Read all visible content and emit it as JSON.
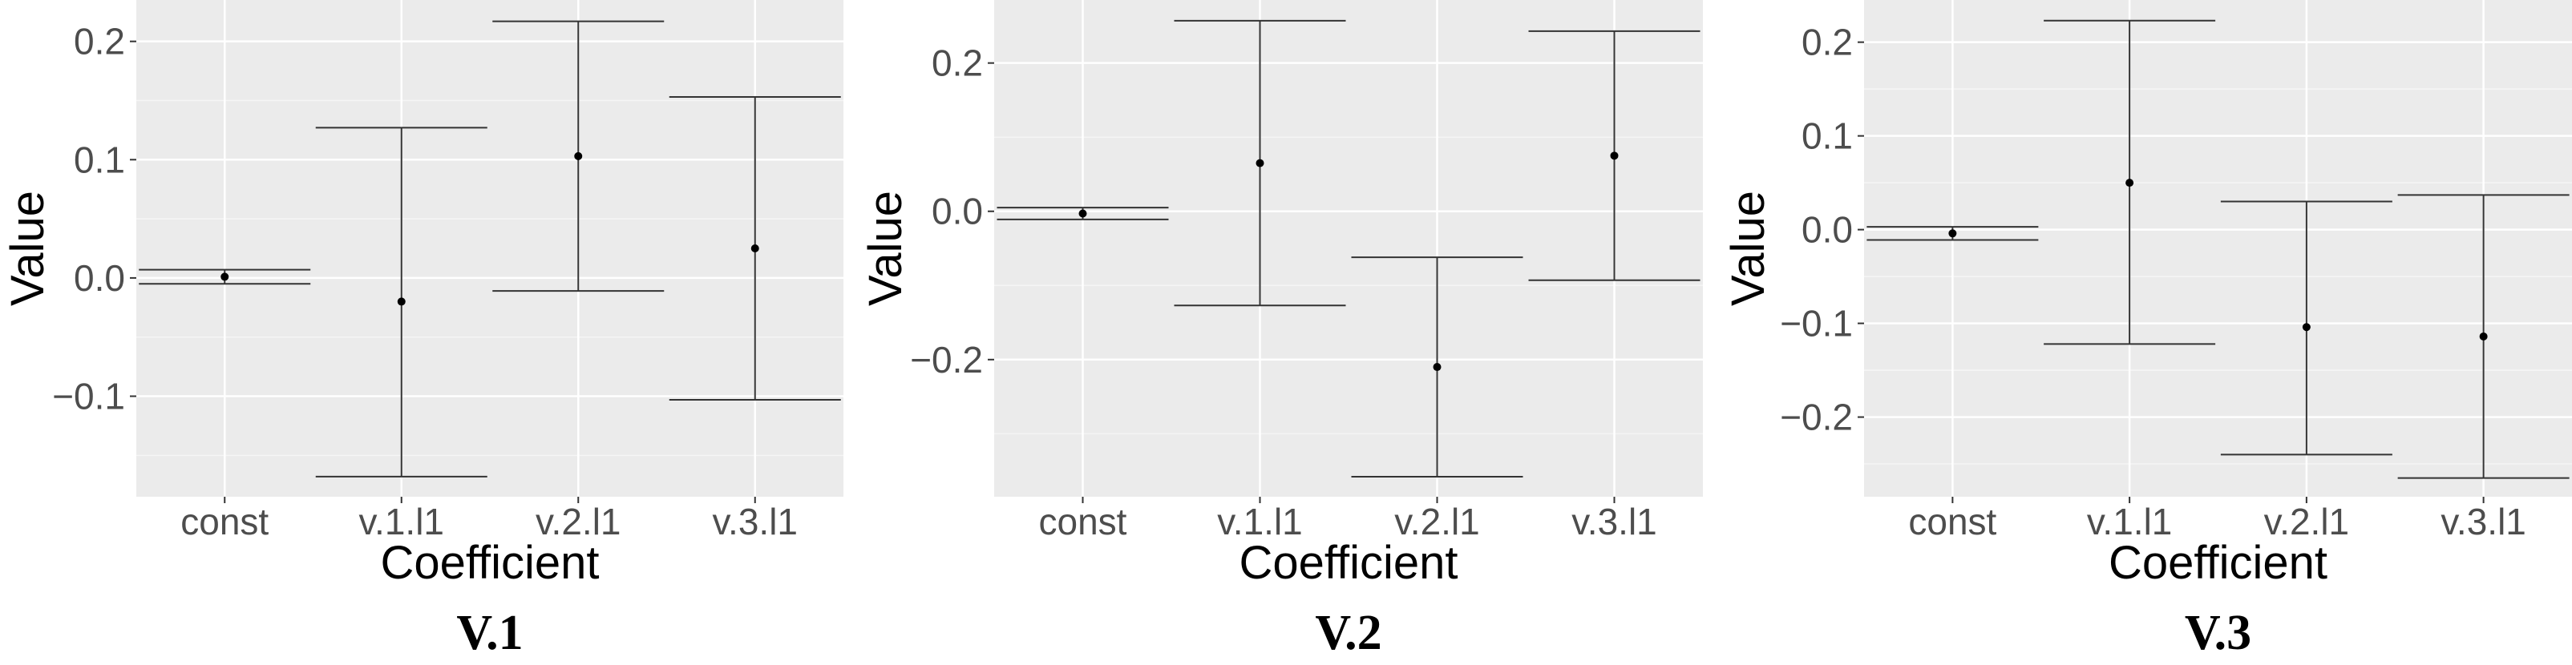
{
  "colors": {
    "panel_background": "#ebebeb",
    "grid_major": "#ffffff",
    "grid_minor": "#f5f5f5",
    "error_bar": "#333333",
    "point": "#000000",
    "tick_text": "#4d4d4d"
  },
  "chart_data": [
    {
      "type": "errorbar",
      "panel_label": "V.1",
      "xlabel": "Coefficient",
      "ylabel": "Value",
      "categories": [
        "const",
        "v.1.l1",
        "v.2.l1",
        "v.3.l1"
      ],
      "estimate": [
        0.001,
        -0.02,
        0.103,
        0.025
      ],
      "lower": [
        -0.005,
        -0.168,
        -0.011,
        -0.103
      ],
      "upper": [
        0.007,
        0.127,
        0.217,
        0.153
      ],
      "ylim": [
        -0.185,
        0.235
      ],
      "yticks": [
        0.2,
        0.1,
        0.0,
        -0.1
      ],
      "ytick_labels": [
        "0.2",
        "0.1",
        "0.0",
        "−0.1"
      ],
      "grid": true
    },
    {
      "type": "errorbar",
      "panel_label": "V.2",
      "xlabel": "Coefficient",
      "ylabel": "Value",
      "categories": [
        "const",
        "v.1.l1",
        "v.2.l1",
        "v.3.l1"
      ],
      "estimate": [
        -0.003,
        0.065,
        -0.21,
        0.075
      ],
      "lower": [
        -0.011,
        -0.127,
        -0.358,
        -0.093
      ],
      "upper": [
        0.005,
        0.257,
        -0.062,
        0.243
      ],
      "ylim": [
        -0.385,
        0.285
      ],
      "yticks": [
        0.2,
        0.0,
        -0.2
      ],
      "ytick_labels": [
        "0.2",
        "0.0",
        "−0.2"
      ],
      "grid": true
    },
    {
      "type": "errorbar",
      "panel_label": "V.3",
      "xlabel": "Coefficient",
      "ylabel": "Value",
      "categories": [
        "const",
        "v.1.l1",
        "v.2.l1",
        "v.3.l1"
      ],
      "estimate": [
        -0.004,
        0.05,
        -0.104,
        -0.114
      ],
      "lower": [
        -0.011,
        -0.122,
        -0.24,
        -0.265
      ],
      "upper": [
        0.003,
        0.223,
        0.03,
        0.037
      ],
      "ylim": [
        -0.285,
        0.245
      ],
      "yticks": [
        0.2,
        0.1,
        0.0,
        -0.1,
        -0.2
      ],
      "ytick_labels": [
        "0.2",
        "0.1",
        "0.0",
        "−0.1",
        "−0.2"
      ],
      "grid": true
    }
  ]
}
